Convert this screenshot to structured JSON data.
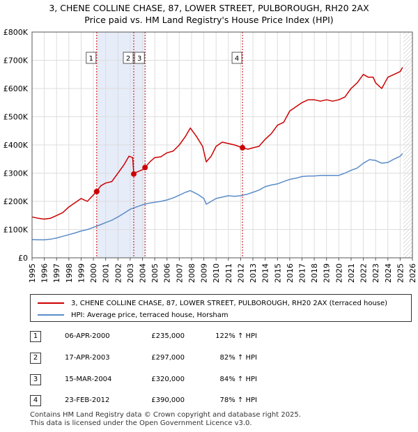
{
  "chart_data": {
    "type": "line",
    "title": "3, CHENE COLLINE CHASE, 87, LOWER STREET, PULBOROUGH, RH20 2AX",
    "subtitle": "Price paid vs. HM Land Registry's House Price Index (HPI)",
    "xlim": [
      1995.0,
      2026.0
    ],
    "ylim": [
      0,
      800000
    ],
    "x_ticks": [
      "1995",
      "1996",
      "1997",
      "1998",
      "1999",
      "2000",
      "2001",
      "2002",
      "2003",
      "2004",
      "2005",
      "2006",
      "2007",
      "2008",
      "2009",
      "2010",
      "2011",
      "2012",
      "2013",
      "2014",
      "2015",
      "2016",
      "2017",
      "2018",
      "2019",
      "2020",
      "2021",
      "2022",
      "2023",
      "2024",
      "2025",
      "2026"
    ],
    "y_ticks": [
      {
        "value": 0,
        "label": "£0"
      },
      {
        "value": 100000,
        "label": "£100K"
      },
      {
        "value": 200000,
        "label": "£200K"
      },
      {
        "value": 300000,
        "label": "£300K"
      },
      {
        "value": 400000,
        "label": "£400K"
      },
      {
        "value": 500000,
        "label": "£500K"
      },
      {
        "value": 600000,
        "label": "£600K"
      },
      {
        "value": 700000,
        "label": "£700K"
      },
      {
        "value": 800000,
        "label": "£800K"
      }
    ],
    "grid": true,
    "shaded_ranges": [
      [
        2000.27,
        2003.3
      ],
      [
        2003.3,
        2004.2
      ]
    ],
    "hatched_range": [
      2025.25,
      2026.0
    ],
    "series": [
      {
        "name": "3, CHENE COLLINE CHASE, 87, LOWER STREET, PULBOROUGH, RH20 2AX (terraced house)",
        "color": "#cc0000",
        "x": [
          1995.0,
          1995.5,
          1996.0,
          1996.5,
          1997.0,
          1997.5,
          1998.0,
          1998.5,
          1999.0,
          1999.5,
          2000.27,
          2000.6,
          2001.0,
          2001.5,
          2002.0,
          2002.5,
          2002.9,
          2003.2,
          2003.29,
          2003.5,
          2004.0,
          2004.21,
          2004.6,
          2005.0,
          2005.5,
          2006.0,
          2006.5,
          2007.0,
          2007.5,
          2007.9,
          2008.4,
          2008.9,
          2009.2,
          2009.6,
          2010.0,
          2010.5,
          2011.0,
          2011.5,
          2012.15,
          2012.6,
          2013.0,
          2013.5,
          2014.0,
          2014.5,
          2015.0,
          2015.5,
          2016.0,
          2016.5,
          2017.0,
          2017.5,
          2018.0,
          2018.5,
          2019.0,
          2019.5,
          2020.0,
          2020.5,
          2021.0,
          2021.5,
          2022.0,
          2022.4,
          2022.8,
          2023.0,
          2023.5,
          2024.0,
          2024.5,
          2025.0,
          2025.2
        ],
        "values": [
          145000,
          140000,
          137000,
          140000,
          150000,
          160000,
          180000,
          195000,
          210000,
          200000,
          235000,
          255000,
          265000,
          270000,
          300000,
          330000,
          360000,
          355000,
          297000,
          303000,
          312000,
          320000,
          340000,
          355000,
          358000,
          372000,
          378000,
          400000,
          430000,
          460000,
          430000,
          395000,
          340000,
          360000,
          395000,
          410000,
          405000,
          400000,
          390000,
          385000,
          390000,
          395000,
          420000,
          440000,
          470000,
          480000,
          520000,
          535000,
          550000,
          560000,
          560000,
          555000,
          560000,
          555000,
          560000,
          570000,
          600000,
          620000,
          650000,
          640000,
          640000,
          620000,
          600000,
          640000,
          650000,
          660000,
          675000
        ]
      },
      {
        "name": "HPI: Average price, terraced house, Horsham",
        "color": "#5b8cc8",
        "x": [
          1995.0,
          1995.5,
          1996.0,
          1996.5,
          1997.0,
          1997.5,
          1998.0,
          1998.5,
          1999.0,
          1999.5,
          2000.0,
          2000.5,
          2001.0,
          2001.5,
          2002.0,
          2002.5,
          2003.0,
          2003.5,
          2004.0,
          2004.5,
          2005.0,
          2005.5,
          2006.0,
          2006.5,
          2007.0,
          2007.5,
          2007.9,
          2008.5,
          2009.0,
          2009.2,
          2009.6,
          2010.0,
          2010.5,
          2011.0,
          2011.5,
          2012.0,
          2012.5,
          2013.0,
          2013.5,
          2014.0,
          2014.5,
          2015.0,
          2015.5,
          2016.0,
          2016.5,
          2017.0,
          2017.5,
          2018.0,
          2018.5,
          2019.0,
          2019.5,
          2020.0,
          2020.5,
          2021.0,
          2021.5,
          2022.0,
          2022.5,
          2023.0,
          2023.5,
          2024.0,
          2024.5,
          2025.0,
          2025.2
        ],
        "values": [
          65000,
          64000,
          64000,
          66000,
          70000,
          76000,
          82000,
          88000,
          95000,
          100000,
          108000,
          116000,
          125000,
          133000,
          145000,
          158000,
          172000,
          180000,
          188000,
          193000,
          197000,
          200000,
          205000,
          212000,
          222000,
          232000,
          238000,
          225000,
          210000,
          190000,
          200000,
          210000,
          215000,
          220000,
          218000,
          220000,
          225000,
          232000,
          240000,
          252000,
          258000,
          262000,
          270000,
          278000,
          282000,
          288000,
          290000,
          290000,
          292000,
          292000,
          292000,
          292000,
          300000,
          310000,
          318000,
          335000,
          348000,
          345000,
          335000,
          338000,
          350000,
          360000,
          370000
        ]
      }
    ],
    "markers": [
      {
        "label": "1",
        "x": 2000.27,
        "y": 235000
      },
      {
        "label": "2",
        "x": 2003.29,
        "y": 297000
      },
      {
        "label": "3",
        "x": 2004.21,
        "y": 320000
      },
      {
        "label": "4",
        "x": 2012.15,
        "y": 390000
      }
    ]
  },
  "legend": [
    {
      "label": "3, CHENE COLLINE CHASE, 87, LOWER STREET, PULBOROUGH, RH20 2AX (terraced house)",
      "color": "#cc0000"
    },
    {
      "label": "HPI: Average price, terraced house, Horsham",
      "color": "#5b8cc8"
    }
  ],
  "transactions": [
    {
      "num": "1",
      "date": "06-APR-2000",
      "price": "£235,000",
      "hpi": "122% ↑ HPI"
    },
    {
      "num": "2",
      "date": "17-APR-2003",
      "price": "£297,000",
      "hpi": "82% ↑ HPI"
    },
    {
      "num": "3",
      "date": "15-MAR-2004",
      "price": "£320,000",
      "hpi": "84% ↑ HPI"
    },
    {
      "num": "4",
      "date": "23-FEB-2012",
      "price": "£390,000",
      "hpi": "78% ↑ HPI"
    }
  ],
  "footer": {
    "line1": "Contains HM Land Registry data © Crown copyright and database right 2025.",
    "line2": "This data is licensed under the Open Government Licence v3.0."
  }
}
